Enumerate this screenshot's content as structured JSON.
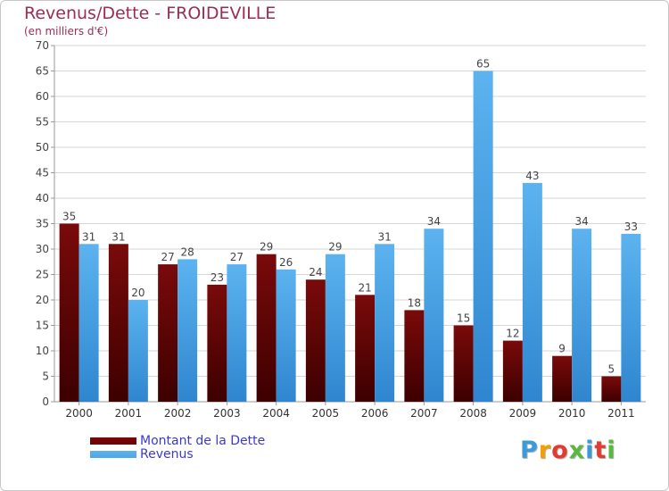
{
  "title": "Revenus/Dette - FROIDEVILLE",
  "subtitle": "(en milliers d'€)",
  "chart_data": {
    "type": "bar",
    "title": "Revenus/Dette - FROIDEVILLE",
    "ylabel": "(en milliers d'€)",
    "xlabel": "",
    "categories": [
      "2000",
      "2001",
      "2002",
      "2003",
      "2004",
      "2005",
      "2006",
      "2007",
      "2008",
      "2009",
      "2010",
      "2011"
    ],
    "ylim": [
      0,
      70
    ],
    "yticks": [
      0,
      5,
      10,
      15,
      20,
      25,
      30,
      35,
      40,
      45,
      50,
      55,
      60,
      65,
      70
    ],
    "grid": true,
    "series": [
      {
        "name": "Montant de la Dette",
        "color": "#6b0000",
        "values": [
          35,
          31,
          27,
          23,
          29,
          24,
          21,
          18,
          15,
          12,
          9,
          5
        ]
      },
      {
        "name": "Revenus",
        "color": "#4da6e8",
        "values": [
          31,
          20,
          28,
          27,
          26,
          29,
          31,
          34,
          65,
          43,
          34,
          33
        ]
      }
    ]
  },
  "legend": {
    "items": [
      {
        "label": "Montant de la Dette",
        "color": "#6b0000"
      },
      {
        "label": "Revenus",
        "color": "#4da6e8"
      }
    ]
  },
  "logo": {
    "text": "Proxiti",
    "letter_colors": [
      "#3a9bd8",
      "#f2a000",
      "#e23b30",
      "#5ab83c",
      "#3a9bd8",
      "#e23b30",
      "#5ab83c"
    ]
  }
}
